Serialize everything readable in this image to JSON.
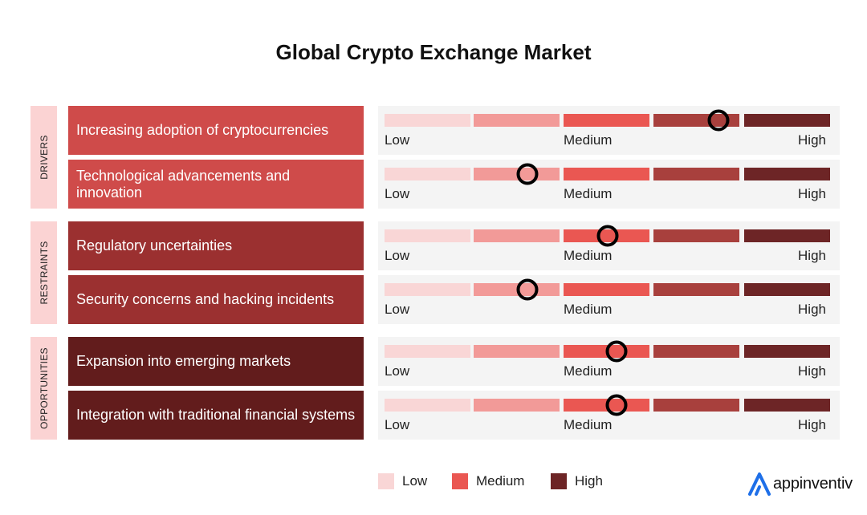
{
  "title": "Global Crypto Exchange Market",
  "scale_labels": {
    "low": "Low",
    "medium": "Medium",
    "high": "High"
  },
  "scale_colors": [
    "#f9d6d6",
    "#f29a98",
    "#ea5752",
    "#a8403d",
    "#6d2526"
  ],
  "categories": [
    {
      "label": "DRIVERS",
      "box_color": "#cf4b4a"
    },
    {
      "label": "RESTRAINTS",
      "box_color": "#9b3030"
    },
    {
      "label": "OPPORTUNITIES",
      "box_color": "#621c1c"
    }
  ],
  "legend": [
    {
      "label": "Low",
      "color": "#f9d6d6"
    },
    {
      "label": "Medium",
      "color": "#ea5752"
    },
    {
      "label": "High",
      "color": "#6d2526"
    }
  ],
  "brand": {
    "name": "appinventiv",
    "logo_icon": "appinventiv-logo-icon",
    "color": "#1e6fe8"
  },
  "chart_data": {
    "type": "table",
    "title": "Global Crypto Exchange Market",
    "scale": [
      "Low",
      "Medium",
      "High"
    ],
    "rating_range": [
      0,
      1
    ],
    "rows": [
      {
        "category": "DRIVERS",
        "factor": "Increasing adoption of cryptocurrencies",
        "rating": 0.75
      },
      {
        "category": "DRIVERS",
        "factor": "Technological advancements and innovation",
        "rating": 0.32
      },
      {
        "category": "RESTRAINTS",
        "factor": "Regulatory uncertainties",
        "rating": 0.5
      },
      {
        "category": "RESTRAINTS",
        "factor": "Security concerns and hacking incidents",
        "rating": 0.32
      },
      {
        "category": "OPPORTUNITIES",
        "factor": "Expansion into emerging markets",
        "rating": 0.52
      },
      {
        "category": "OPPORTUNITIES",
        "factor": "Integration with traditional financial systems",
        "rating": 0.52
      }
    ]
  }
}
